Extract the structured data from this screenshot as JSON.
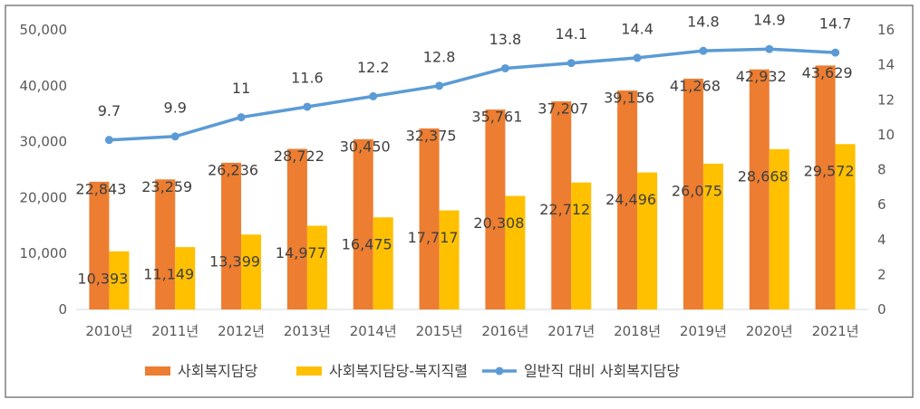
{
  "chart_data": {
    "type": "bar",
    "categories": [
      "2010년",
      "2011년",
      "2012년",
      "2013년",
      "2014년",
      "2015년",
      "2016년",
      "2017년",
      "2018년",
      "2019년",
      "2020년",
      "2021년"
    ],
    "series": [
      {
        "name": "사회복지담당",
        "kind": "bar",
        "axis": "left",
        "color": "#ED7D31",
        "values": [
          22843,
          23259,
          26236,
          28722,
          30450,
          32375,
          35761,
          37207,
          39156,
          41268,
          42932,
          43629
        ],
        "labels": [
          "22,843",
          "23,259",
          "26,236",
          "28,722",
          "30,450",
          "32,375",
          "35,761",
          "37,207",
          "39,156",
          "41,268",
          "42,932",
          "43,629"
        ]
      },
      {
        "name": "사회복지담당-복지직렬",
        "kind": "bar",
        "axis": "left",
        "color": "#FFC000",
        "values": [
          10393,
          11149,
          13399,
          14977,
          16475,
          17717,
          20308,
          22712,
          24496,
          26075,
          28668,
          29572
        ],
        "labels": [
          "10,393",
          "11,149",
          "13,399",
          "14,977",
          "16,475",
          "17,717",
          "20,308",
          "22,712",
          "24,496",
          "26,075",
          "28,668",
          "29,572"
        ]
      },
      {
        "name": "일반직 대비 사회복지담당",
        "kind": "line",
        "axis": "right",
        "color": "#5B9BD5",
        "values": [
          9.7,
          9.9,
          11,
          11.6,
          12.2,
          12.8,
          13.8,
          14.1,
          14.4,
          14.8,
          14.9,
          14.7
        ],
        "labels": [
          "9.7",
          "9.9",
          "11",
          "11.6",
          "12.2",
          "12.8",
          "13.8",
          "14.1",
          "14.4",
          "14.8",
          "14.9",
          "14.7"
        ]
      }
    ],
    "y_left": {
      "range": [
        0,
        50000
      ],
      "ticks": [
        0,
        10000,
        20000,
        30000,
        40000,
        50000
      ],
      "tick_labels": [
        "0",
        "10,000",
        "20,000",
        "30,000",
        "40,000",
        "50,000"
      ]
    },
    "y_right": {
      "range": [
        0,
        16
      ],
      "ticks": [
        0,
        2,
        4,
        6,
        8,
        10,
        12,
        14,
        16
      ],
      "tick_labels": [
        "0",
        "2",
        "4",
        "6",
        "8",
        "10",
        "12",
        "14",
        "16"
      ]
    },
    "grid": false,
    "legend_position": "bottom"
  }
}
